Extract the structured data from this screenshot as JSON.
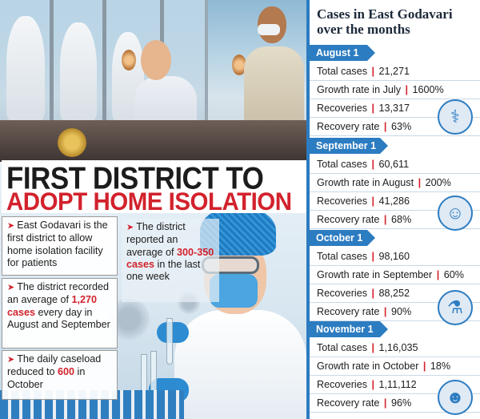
{
  "headline": {
    "line1": "FIRST DISTRICT TO",
    "line2": "ADOPT HOME ISOLATION"
  },
  "bullets": [
    {
      "prefix": "East Godavari is the first district to allow home isolation facility for patients",
      "highlight": "",
      "suffix": ""
    },
    {
      "prefix": "The district recorded an average of ",
      "highlight": "1,270 cases",
      "suffix": " every day in August and September"
    },
    {
      "prefix": "The daily caseload reduced to ",
      "highlight": "600",
      "suffix": " in October"
    },
    {
      "prefix": "The district reported an average of ",
      "highlight": "300-350 cases",
      "suffix": " in the last one week"
    }
  ],
  "panel": {
    "title": "Cases in East Godavari over the months",
    "months": [
      {
        "label": "August 1",
        "rows": [
          {
            "label": "Total cases",
            "value": "21,271"
          },
          {
            "label": "Growth rate in July",
            "value": "1600%"
          },
          {
            "label": "Recoveries",
            "value": "13,317"
          },
          {
            "label": "Recovery rate",
            "value": "63%"
          }
        ]
      },
      {
        "label": "September 1",
        "rows": [
          {
            "label": "Total cases",
            "value": "60,611"
          },
          {
            "label": "Growth rate in August",
            "value": "200%"
          },
          {
            "label": "Recoveries",
            "value": "41,286"
          },
          {
            "label": "Recovery rate",
            "value": "68%"
          }
        ]
      },
      {
        "label": "October 1",
        "rows": [
          {
            "label": "Total cases",
            "value": "98,160"
          },
          {
            "label": "Growth rate in September",
            "value": "60%"
          },
          {
            "label": "Recoveries",
            "value": "88,252"
          },
          {
            "label": "Recovery rate",
            "value": "90%"
          }
        ]
      },
      {
        "label": "November 1",
        "rows": [
          {
            "label": "Total cases",
            "value": "1,16,035"
          },
          {
            "label": "Growth rate in October",
            "value": "18%"
          },
          {
            "label": "Recoveries",
            "value": "1,11,112"
          },
          {
            "label": "Recovery rate",
            "value": "96%"
          }
        ]
      }
    ],
    "icons": [
      "doctor-desk-icon",
      "people-group-icon",
      "test-tube-hand-icon",
      "masked-person-icon"
    ]
  },
  "colors": {
    "accent_blue": "#2c7cc1",
    "headline_red": "#d2222c",
    "text_dark": "#1c1c1c"
  }
}
